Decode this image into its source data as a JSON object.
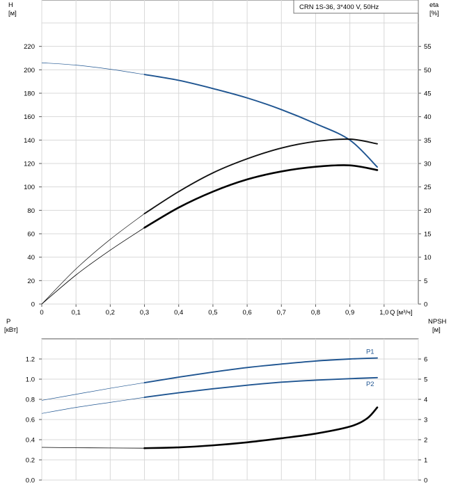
{
  "chart_data": [
    {
      "type": "line",
      "title": "CRN 1S-36, 3*400 V, 50Hz",
      "xlabel": "Q [м³/ч]",
      "ylabel_left_1": "H",
      "ylabel_left_2": "[м]",
      "ylabel_right_1": "eta",
      "ylabel_right_2": "[%]",
      "xlim": [
        0,
        1.1
      ],
      "ylim_left": [
        0,
        240
      ],
      "ylim_right": [
        0,
        60
      ],
      "x_ticks": [
        "0",
        "0,1",
        "0,2",
        "0,3",
        "0,4",
        "0,5",
        "0,6",
        "0,7",
        "0,8",
        "0,9",
        "1,0"
      ],
      "y_ticks_left": [
        "0",
        "20",
        "40",
        "60",
        "80",
        "100",
        "120",
        "140",
        "160",
        "180",
        "200",
        "220"
      ],
      "y_ticks_right": [
        "0",
        "5",
        "10",
        "15",
        "20",
        "25",
        "30",
        "35",
        "40",
        "45",
        "50",
        "55"
      ],
      "grid": true,
      "series": [
        {
          "axis": "left",
          "color": "#1f5591",
          "thin_until_x": 0.3,
          "points": [
            [
              0.0,
              206
            ],
            [
              0.1,
              204
            ],
            [
              0.2,
              200.5
            ],
            [
              0.3,
              196
            ],
            [
              0.4,
              191
            ],
            [
              0.5,
              184
            ],
            [
              0.6,
              176
            ],
            [
              0.7,
              166
            ],
            [
              0.8,
              154
            ],
            [
              0.9,
              140
            ],
            [
              0.98,
              117
            ]
          ]
        },
        {
          "axis": "right",
          "color": "#111111",
          "thin_until_x": 0.3,
          "points": [
            [
              0.0,
              0
            ],
            [
              0.1,
              7.5
            ],
            [
              0.2,
              13.8
            ],
            [
              0.3,
              19.3
            ],
            [
              0.4,
              24
            ],
            [
              0.5,
              28
            ],
            [
              0.6,
              31
            ],
            [
              0.7,
              33.3
            ],
            [
              0.8,
              34.7
            ],
            [
              0.9,
              35.2
            ],
            [
              0.98,
              34.2
            ]
          ]
        },
        {
          "axis": "right",
          "color": "#000000",
          "thin_until_x": 0.3,
          "bold": true,
          "points": [
            [
              0.0,
              0
            ],
            [
              0.1,
              6.2
            ],
            [
              0.2,
              11.5
            ],
            [
              0.3,
              16.3
            ],
            [
              0.4,
              20.6
            ],
            [
              0.5,
              24
            ],
            [
              0.6,
              26.6
            ],
            [
              0.7,
              28.3
            ],
            [
              0.8,
              29.3
            ],
            [
              0.9,
              29.6
            ],
            [
              0.98,
              28.6
            ]
          ]
        }
      ]
    },
    {
      "type": "line",
      "xlim": [
        0,
        1.1
      ],
      "ylabel_left_1": "P",
      "ylabel_left_2": "[кВт]",
      "ylabel_right_1": "NPSH",
      "ylabel_right_2": "[м]",
      "ylim_left": [
        0,
        1.4
      ],
      "ylim_right": [
        0,
        7
      ],
      "y_ticks_left": [
        "0.0",
        "0.2",
        "0.4",
        "0.6",
        "0.8",
        "1.0",
        "1.2"
      ],
      "y_ticks_right": [
        "0",
        "1",
        "2",
        "3",
        "4",
        "5",
        "6"
      ],
      "grid": true,
      "series": [
        {
          "name": "P1",
          "axis": "left",
          "color": "#1f5591",
          "thin_until_x": 0.3,
          "points": [
            [
              0.0,
              0.79
            ],
            [
              0.1,
              0.85
            ],
            [
              0.2,
              0.91
            ],
            [
              0.3,
              0.965
            ],
            [
              0.4,
              1.02
            ],
            [
              0.5,
              1.07
            ],
            [
              0.6,
              1.115
            ],
            [
              0.7,
              1.15
            ],
            [
              0.8,
              1.18
            ],
            [
              0.9,
              1.2
            ],
            [
              0.98,
              1.21
            ]
          ]
        },
        {
          "name": "P2",
          "axis": "left",
          "color": "#1f5591",
          "thin_until_x": 0.3,
          "points": [
            [
              0.0,
              0.66
            ],
            [
              0.1,
              0.72
            ],
            [
              0.2,
              0.77
            ],
            [
              0.3,
              0.82
            ],
            [
              0.4,
              0.865
            ],
            [
              0.5,
              0.905
            ],
            [
              0.6,
              0.94
            ],
            [
              0.7,
              0.97
            ],
            [
              0.8,
              0.99
            ],
            [
              0.9,
              1.005
            ],
            [
              0.98,
              1.015
            ]
          ]
        },
        {
          "axis": "right",
          "color": "#000000",
          "thin_until_x": 0.3,
          "bold": true,
          "points": [
            [
              0.0,
              1.62
            ],
            [
              0.1,
              1.6
            ],
            [
              0.2,
              1.59
            ],
            [
              0.3,
              1.58
            ],
            [
              0.4,
              1.62
            ],
            [
              0.5,
              1.72
            ],
            [
              0.6,
              1.87
            ],
            [
              0.7,
              2.07
            ],
            [
              0.8,
              2.3
            ],
            [
              0.9,
              2.65
            ],
            [
              0.95,
              3.05
            ],
            [
              0.98,
              3.6
            ]
          ]
        }
      ]
    }
  ]
}
